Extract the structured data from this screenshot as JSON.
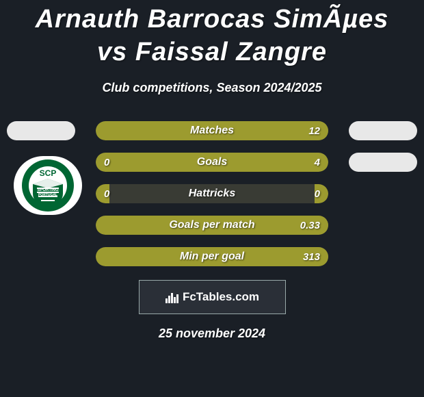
{
  "title": "Arnauth Barrocas SimÃµes vs Faissal Zangre",
  "subtitle": "Club competitions, Season 2024/2025",
  "date": "25 november 2024",
  "footer_brand": "FcTables.com",
  "colors": {
    "background": "#1a1f26",
    "bar_track": "#393b34",
    "left_fill": "#9c9b2f",
    "right_fill": "#9c9b2f",
    "oval_white": "#e8e8e8",
    "text": "#ffffff"
  },
  "club_badge": {
    "name": "Sporting CP",
    "ring_color": "#006633",
    "inner_color": "#ffffff",
    "text_top": "SCP",
    "text_mid": "SPORTING",
    "text_bot": "PORTUGAL"
  },
  "side_ovals": {
    "row0_left": true,
    "row0_right": true,
    "row1_right": true
  },
  "stats": [
    {
      "label": "Matches",
      "left_value": "",
      "right_value": "12",
      "left_pct": 100,
      "right_pct": 0,
      "left_color": "#9c9b2f",
      "right_color": "#9c9b2f"
    },
    {
      "label": "Goals",
      "left_value": "0",
      "right_value": "4",
      "left_pct": 6,
      "right_pct": 94,
      "left_color": "#9c9b2f",
      "right_color": "#9c9b2f"
    },
    {
      "label": "Hattricks",
      "left_value": "0",
      "right_value": "0",
      "left_pct": 6,
      "right_pct": 6,
      "left_color": "#9c9b2f",
      "right_color": "#9c9b2f"
    },
    {
      "label": "Goals per match",
      "left_value": "",
      "right_value": "0.33",
      "left_pct": 100,
      "right_pct": 0,
      "left_color": "#9c9b2f",
      "right_color": "#9c9b2f"
    },
    {
      "label": "Min per goal",
      "left_value": "",
      "right_value": "313",
      "left_pct": 100,
      "right_pct": 0,
      "left_color": "#9c9b2f",
      "right_color": "#9c9b2f"
    }
  ]
}
